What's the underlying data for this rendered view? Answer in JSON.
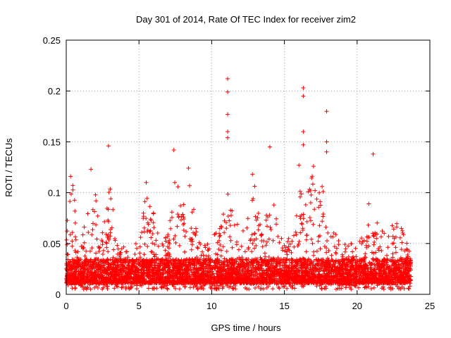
{
  "chart_data": {
    "type": "scatter",
    "title": "Day 301 of 2014, Rate Of TEC Index for receiver zim2",
    "xlabel": "GPS time / hours",
    "ylabel": "ROTI / TECUs",
    "xlim": [
      0,
      25
    ],
    "ylim": [
      0,
      0.25
    ],
    "x_ticks": [
      "0",
      "5",
      "10",
      "15",
      "20",
      "25"
    ],
    "y_ticks": [
      "0",
      "0.05",
      "0.1",
      "0.15",
      "0.2",
      "0.25"
    ],
    "x_tick_values": [
      0,
      5,
      10,
      15,
      20,
      25
    ],
    "y_tick_values": [
      0,
      0.05,
      0.1,
      0.15,
      0.2,
      0.25
    ],
    "grid": true,
    "marker": "+",
    "series": [
      {
        "name": "ROTI",
        "color": "#ff0000",
        "notable_points": [
          {
            "x": 11.1,
            "y": 0.212
          },
          {
            "x": 11.1,
            "y": 0.199
          },
          {
            "x": 11.1,
            "y": 0.177
          },
          {
            "x": 11.1,
            "y": 0.16
          },
          {
            "x": 11.1,
            "y": 0.154
          },
          {
            "x": 16.3,
            "y": 0.203
          },
          {
            "x": 16.3,
            "y": 0.195
          },
          {
            "x": 16.3,
            "y": 0.16
          },
          {
            "x": 16.3,
            "y": 0.147
          },
          {
            "x": 17.9,
            "y": 0.18
          },
          {
            "x": 17.9,
            "y": 0.15
          },
          {
            "x": 17.9,
            "y": 0.14
          },
          {
            "x": 2.9,
            "y": 0.146
          },
          {
            "x": 14.0,
            "y": 0.145
          },
          {
            "x": 7.4,
            "y": 0.142
          },
          {
            "x": 21.1,
            "y": 0.138
          },
          {
            "x": 16.0,
            "y": 0.127
          },
          {
            "x": 17.0,
            "y": 0.126
          },
          {
            "x": 8.4,
            "y": 0.124
          },
          {
            "x": 1.7,
            "y": 0.123
          },
          {
            "x": 0.3,
            "y": 0.116
          },
          {
            "x": 5.5,
            "y": 0.11
          },
          {
            "x": 12.8,
            "y": 0.118
          },
          {
            "x": 20.8,
            "y": 0.089
          }
        ],
        "density_profile": {
          "x": [
            0,
            0.5,
            1,
            1.5,
            2,
            2.5,
            3,
            3.5,
            4,
            4.5,
            5,
            5.5,
            6,
            6.5,
            7,
            7.5,
            8,
            8.5,
            9,
            9.5,
            10,
            10.5,
            11,
            11.5,
            12,
            12.5,
            13,
            13.5,
            14,
            14.5,
            15,
            15.5,
            16,
            16.5,
            17,
            17.5,
            18,
            18.5,
            19,
            19.5,
            20,
            20.5,
            21,
            21.5,
            22,
            22.5,
            23,
            23.7
          ],
          "typical_max": [
            0.09,
            0.11,
            0.06,
            0.08,
            0.1,
            0.07,
            0.11,
            0.05,
            0.05,
            0.04,
            0.07,
            0.1,
            0.08,
            0.05,
            0.06,
            0.12,
            0.09,
            0.11,
            0.07,
            0.05,
            0.06,
            0.07,
            0.11,
            0.08,
            0.06,
            0.09,
            0.11,
            0.06,
            0.1,
            0.08,
            0.05,
            0.06,
            0.11,
            0.1,
            0.12,
            0.11,
            0.09,
            0.06,
            0.05,
            0.05,
            0.05,
            0.06,
            0.08,
            0.07,
            0.06,
            0.07,
            0.07,
            0.04
          ],
          "floor": 0.005
        }
      }
    ]
  }
}
